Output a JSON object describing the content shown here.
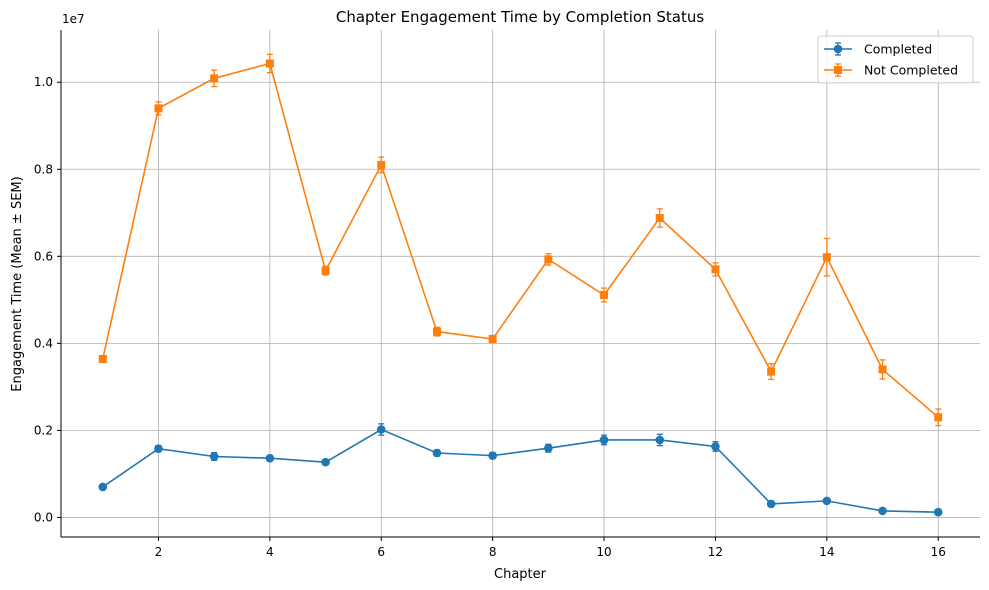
{
  "chart_data": {
    "type": "line",
    "title": "Chapter Engagement Time by Completion Status",
    "xlabel": "Chapter",
    "ylabel": "Engagement Time (Mean ± SEM)",
    "y_multiplier_label": "1e7",
    "xlim": [
      0.25,
      16.75
    ],
    "ylim": [
      -0.045,
      1.12
    ],
    "x_ticks": [
      2,
      4,
      6,
      8,
      10,
      12,
      14,
      16
    ],
    "x_tick_labels": [
      "2",
      "4",
      "6",
      "8",
      "10",
      "12",
      "14",
      "16"
    ],
    "y_ticks": [
      0.0,
      0.2,
      0.4,
      0.6,
      0.8,
      1.0
    ],
    "y_tick_labels": [
      "0.0",
      "0.2",
      "0.4",
      "0.6",
      "0.8",
      "1.0"
    ],
    "grid": true,
    "legend_position": "top-right",
    "x": [
      1,
      2,
      3,
      4,
      5,
      6,
      7,
      8,
      9,
      10,
      11,
      12,
      13,
      14,
      15,
      16
    ],
    "series": [
      {
        "name": "Completed",
        "color": "#1f77b4",
        "marker": "circle",
        "values": [
          0.07,
          0.158,
          0.14,
          0.136,
          0.127,
          0.202,
          0.148,
          0.142,
          0.159,
          0.178,
          0.178,
          0.163,
          0.031,
          0.038,
          0.015,
          0.012
        ],
        "errors": [
          0.004,
          0.007,
          0.009,
          0.006,
          0.005,
          0.013,
          0.007,
          0.007,
          0.009,
          0.011,
          0.013,
          0.011,
          0.004,
          0.005,
          0.003,
          0.003
        ]
      },
      {
        "name": "Not Completed",
        "color": "#ff7f0e",
        "marker": "square",
        "values": [
          0.364,
          0.94,
          1.009,
          1.043,
          0.567,
          0.81,
          0.427,
          0.41,
          0.593,
          0.511,
          0.688,
          0.57,
          0.335,
          0.598,
          0.34,
          0.23
        ],
        "errors": [
          0.006,
          0.015,
          0.019,
          0.021,
          0.01,
          0.018,
          0.01,
          0.008,
          0.013,
          0.016,
          0.021,
          0.015,
          0.018,
          0.043,
          0.022,
          0.019
        ]
      }
    ]
  }
}
